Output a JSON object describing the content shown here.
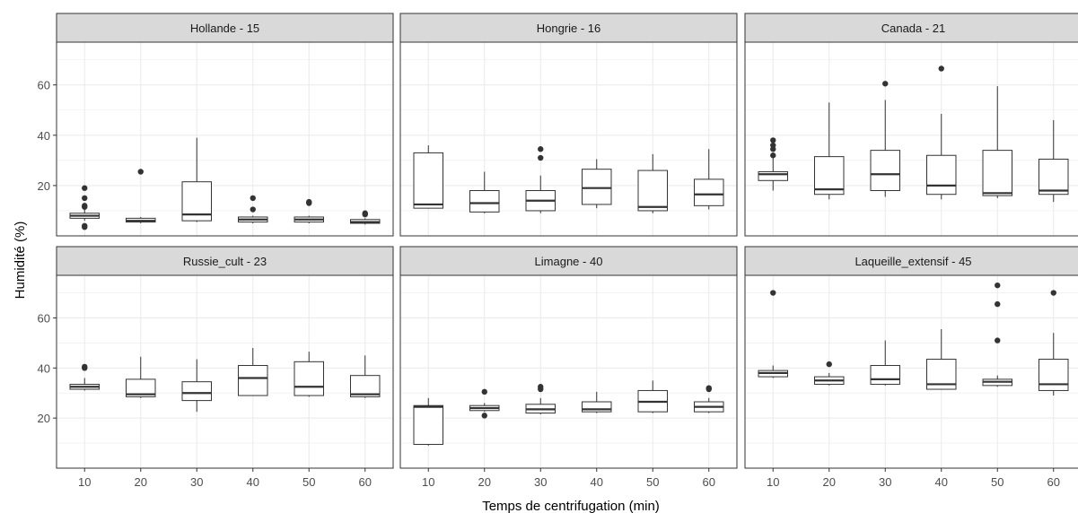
{
  "chart_data": {
    "type": "boxplot",
    "ylabel": "Humidité (%)",
    "xlabel": "Temps de centrifugation (min)",
    "ylim": [
      0,
      77
    ],
    "y_ticks": [
      20,
      40,
      60
    ],
    "x_categories": [
      "10",
      "20",
      "30",
      "40",
      "50",
      "60"
    ],
    "grid": true,
    "colors": {
      "strip": "#d9d9d9",
      "grid": "#ebebeb",
      "box": "#333333"
    },
    "panels": [
      {
        "title": "Hollande - 15",
        "boxes": [
          {
            "x": "10",
            "min": 6,
            "q1": 7,
            "median": 8,
            "q3": 9,
            "max": 11,
            "outliers": [
              4,
              3.5,
              11.5,
              12,
              15,
              19
            ]
          },
          {
            "x": "20",
            "min": 5,
            "q1": 5.5,
            "median": 6,
            "q3": 7,
            "max": 7.5,
            "outliers": [
              25.5
            ]
          },
          {
            "x": "30",
            "min": 5.5,
            "q1": 6,
            "median": 8.5,
            "q3": 21.5,
            "max": 39,
            "outliers": []
          },
          {
            "x": "40",
            "min": 5,
            "q1": 5.5,
            "median": 6.5,
            "q3": 7.5,
            "max": 8,
            "outliers": [
              10.5,
              15
            ]
          },
          {
            "x": "50",
            "min": 5,
            "q1": 5.5,
            "median": 6.5,
            "q3": 7.5,
            "max": 8,
            "outliers": [
              13,
              13.5
            ]
          },
          {
            "x": "60",
            "min": 4.5,
            "q1": 5,
            "median": 5.5,
            "q3": 6.5,
            "max": 7,
            "outliers": [
              8.5,
              9
            ]
          }
        ]
      },
      {
        "title": "Hongrie - 16",
        "boxes": [
          {
            "x": "10",
            "min": 11,
            "q1": 11,
            "median": 12.5,
            "q3": 33,
            "max": 36,
            "outliers": []
          },
          {
            "x": "20",
            "min": 9,
            "q1": 9.5,
            "median": 13,
            "q3": 18,
            "max": 25.5,
            "outliers": []
          },
          {
            "x": "30",
            "min": 9,
            "q1": 10,
            "median": 14,
            "q3": 18,
            "max": 24,
            "outliers": [
              31,
              34.5
            ]
          },
          {
            "x": "40",
            "min": 11,
            "q1": 12.5,
            "median": 19,
            "q3": 26.5,
            "max": 30.5,
            "outliers": []
          },
          {
            "x": "50",
            "min": 9,
            "q1": 10,
            "median": 11.5,
            "q3": 26,
            "max": 32.5,
            "outliers": []
          },
          {
            "x": "60",
            "min": 10.5,
            "q1": 12,
            "median": 16.5,
            "q3": 22.5,
            "max": 34.5,
            "outliers": []
          }
        ]
      },
      {
        "title": "Canada - 21",
        "boxes": [
          {
            "x": "10",
            "min": 18,
            "q1": 22,
            "median": 24.5,
            "q3": 25.5,
            "max": 31,
            "outliers": [
              32,
              34.5,
              36,
              38
            ]
          },
          {
            "x": "20",
            "min": 14.5,
            "q1": 16.5,
            "median": 18.5,
            "q3": 31.5,
            "max": 53,
            "outliers": []
          },
          {
            "x": "30",
            "min": 15.5,
            "q1": 18,
            "median": 24.5,
            "q3": 34,
            "max": 54,
            "outliers": [
              60.5
            ]
          },
          {
            "x": "40",
            "min": 14.5,
            "q1": 16.5,
            "median": 20,
            "q3": 32,
            "max": 48.5,
            "outliers": [
              66.5
            ]
          },
          {
            "x": "50",
            "min": 15,
            "q1": 16,
            "median": 17,
            "q3": 34,
            "max": 59.5,
            "outliers": []
          },
          {
            "x": "60",
            "min": 13.5,
            "q1": 16.5,
            "median": 18,
            "q3": 30.5,
            "max": 46,
            "outliers": []
          }
        ]
      },
      {
        "title": "Russie_cult - 23",
        "boxes": [
          {
            "x": "10",
            "min": 31,
            "q1": 31.5,
            "median": 32.5,
            "q3": 33.5,
            "max": 36,
            "outliers": [
              40,
              40.5
            ]
          },
          {
            "x": "20",
            "min": 28,
            "q1": 28.5,
            "median": 29.5,
            "q3": 35.5,
            "max": 44.5,
            "outliers": []
          },
          {
            "x": "30",
            "min": 22.5,
            "q1": 27,
            "median": 30,
            "q3": 34.5,
            "max": 43.5,
            "outliers": []
          },
          {
            "x": "40",
            "min": 29,
            "q1": 29,
            "median": 36,
            "q3": 41,
            "max": 48,
            "outliers": []
          },
          {
            "x": "50",
            "min": 28.5,
            "q1": 29,
            "median": 32.5,
            "q3": 42.5,
            "max": 46.5,
            "outliers": []
          },
          {
            "x": "60",
            "min": 28,
            "q1": 28.5,
            "median": 29.5,
            "q3": 37,
            "max": 45,
            "outliers": []
          }
        ]
      },
      {
        "title": "Limagne - 40",
        "boxes": [
          {
            "x": "10",
            "min": 9,
            "q1": 9.5,
            "median": 24.5,
            "q3": 25,
            "max": 28,
            "outliers": []
          },
          {
            "x": "20",
            "min": 22.5,
            "q1": 23,
            "median": 24,
            "q3": 25,
            "max": 26,
            "outliers": [
              21,
              30.5
            ]
          },
          {
            "x": "30",
            "min": 21.5,
            "q1": 22,
            "median": 23.5,
            "q3": 25.5,
            "max": 28,
            "outliers": [
              31.5,
              32.5
            ]
          },
          {
            "x": "40",
            "min": 22,
            "q1": 22.5,
            "median": 23.5,
            "q3": 26.5,
            "max": 30.5,
            "outliers": []
          },
          {
            "x": "50",
            "min": 22,
            "q1": 22.5,
            "median": 26.5,
            "q3": 31,
            "max": 35,
            "outliers": []
          },
          {
            "x": "60",
            "min": 22,
            "q1": 22.5,
            "median": 24.5,
            "q3": 26.5,
            "max": 28,
            "outliers": [
              31.5,
              32
            ]
          }
        ]
      },
      {
        "title": "Laqueille_extensif - 45",
        "boxes": [
          {
            "x": "10",
            "min": 36,
            "q1": 36.5,
            "median": 38,
            "q3": 39,
            "max": 41,
            "outliers": [
              70
            ]
          },
          {
            "x": "20",
            "min": 33,
            "q1": 33.5,
            "median": 35,
            "q3": 36.5,
            "max": 38,
            "outliers": [
              41.5
            ]
          },
          {
            "x": "30",
            "min": 33,
            "q1": 33.5,
            "median": 35.5,
            "q3": 41,
            "max": 51,
            "outliers": []
          },
          {
            "x": "40",
            "min": 31.5,
            "q1": 31.5,
            "median": 33.5,
            "q3": 43.5,
            "max": 55.5,
            "outliers": []
          },
          {
            "x": "50",
            "min": 32.5,
            "q1": 33,
            "median": 34.5,
            "q3": 35.5,
            "max": 37,
            "outliers": [
              51,
              65.5,
              73
            ]
          },
          {
            "x": "60",
            "min": 29,
            "q1": 31,
            "median": 33.5,
            "q3": 43.5,
            "max": 54,
            "outliers": [
              70
            ]
          }
        ]
      }
    ]
  }
}
